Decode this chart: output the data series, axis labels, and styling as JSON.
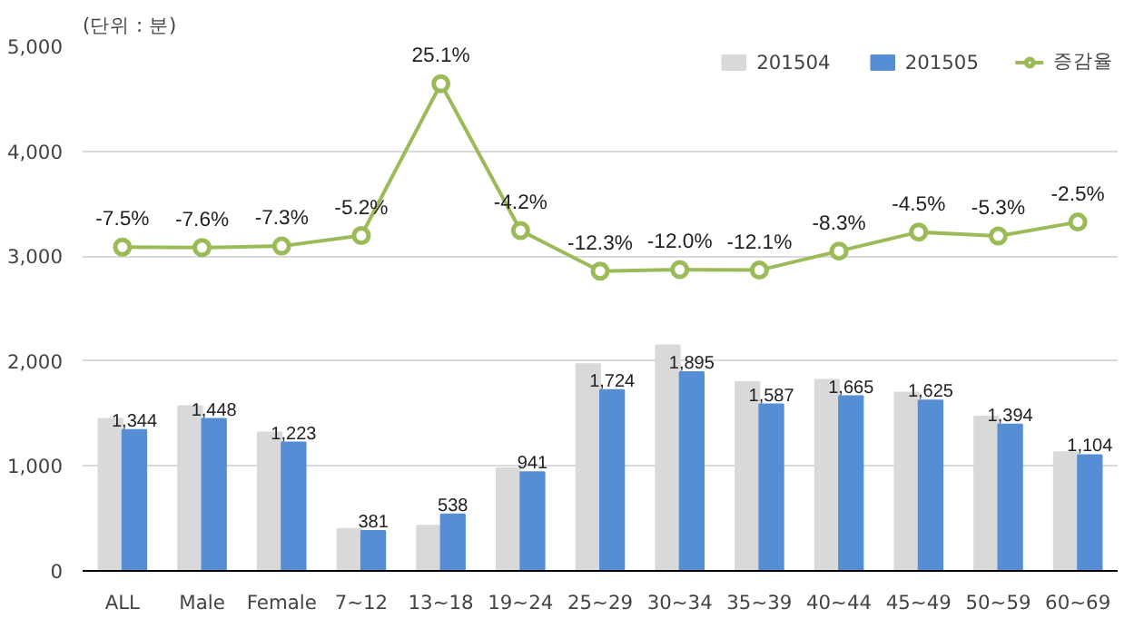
{
  "chart_data": {
    "type": "bar",
    "ylabel": "(단위 : 분)",
    "categories": [
      "ALL",
      "Male",
      "Female",
      "7~12",
      "13~18",
      "19~24",
      "25~29",
      "30~34",
      "35~39",
      "40~44",
      "45~49",
      "50~59",
      "60~69"
    ],
    "series": [
      {
        "name": "201504",
        "color": "#d9d9d9",
        "values": [
          1450,
          1570,
          1320,
          400,
          430,
          980,
          1970,
          2150,
          1800,
          1820,
          1700,
          1470,
          1130
        ]
      },
      {
        "name": "201505",
        "color": "#558ed5",
        "values": [
          1344,
          1448,
          1223,
          381,
          538,
          941,
          1724,
          1895,
          1587,
          1665,
          1625,
          1394,
          1104
        ],
        "value_labels": [
          "1,344",
          "1,448",
          "1,223",
          "381",
          "538",
          "941",
          "1,724",
          "1,895",
          "1,587",
          "1,665",
          "1,625",
          "1,394",
          "1,104"
        ]
      },
      {
        "name": "증감율",
        "type": "line",
        "axis": "y2",
        "color": "#9bbb59",
        "marker": "circle",
        "values": [
          -7.5,
          -7.6,
          -7.3,
          -5.2,
          25.1,
          -4.2,
          -12.3,
          -12.0,
          -12.1,
          -8.3,
          -4.5,
          -5.3,
          -2.5
        ],
        "value_labels": [
          "-7.5%",
          "-7.6%",
          "-7.3%",
          "-5.2%",
          "25.1%",
          "-4.2%",
          "-12.3%",
          "-12.0%",
          "-12.1%",
          "-8.3%",
          "-4.5%",
          "-5.3%",
          "-2.5%"
        ]
      }
    ],
    "ylim": [
      0,
      5000
    ],
    "yticks": [
      {
        "value": 0,
        "label": "0"
      },
      {
        "value": 1000,
        "label": "1,000"
      },
      {
        "value": 2000,
        "label": "2,000"
      },
      {
        "value": 3000,
        "label": "3,000"
      },
      {
        "value": 4000,
        "label": "4,000"
      },
      {
        "value": 5000,
        "label": "5,000"
      }
    ],
    "grid": "y",
    "legend": "top right"
  }
}
